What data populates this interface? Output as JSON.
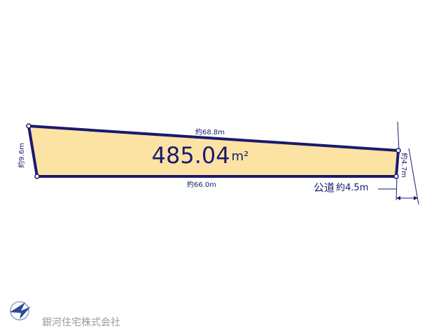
{
  "plot": {
    "area": "485.04",
    "area_unit": "m²",
    "sides": {
      "top": "約68.8m",
      "left": "約9.6m",
      "bottom": "約66.0m",
      "right": "約4.7m"
    }
  },
  "road": {
    "label": "公道",
    "width": "約4.5m"
  },
  "company": "銀河住宅株式会社"
}
